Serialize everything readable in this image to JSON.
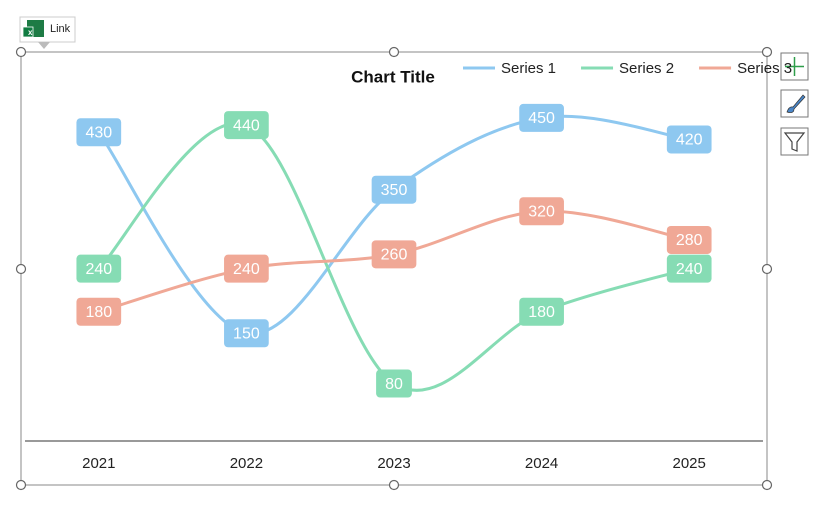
{
  "ui": {
    "link_label": "Link"
  },
  "chart_data": {
    "type": "line",
    "title": "Chart Title",
    "categories": [
      "2021",
      "2022",
      "2023",
      "2024",
      "2025"
    ],
    "ylim": [
      0,
      500
    ],
    "smooth": true,
    "data_labels": true,
    "legend": "top-right",
    "series": [
      {
        "name": "Series 1",
        "color": "#8ec8f0",
        "values": [
          430,
          150,
          350,
          450,
          420
        ]
      },
      {
        "name": "Series 2",
        "color": "#86dcb4",
        "values": [
          240,
          440,
          80,
          180,
          240
        ]
      },
      {
        "name": "Series 3",
        "color": "#f0a896",
        "values": [
          180,
          240,
          260,
          320,
          280
        ]
      }
    ]
  }
}
